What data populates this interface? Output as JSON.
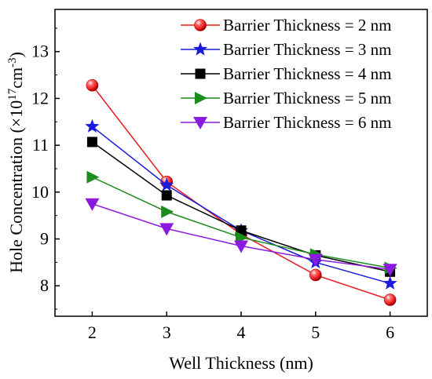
{
  "chart_data": {
    "type": "line",
    "title": "",
    "xlabel": "Well Thickness (nm)",
    "ylabel": {
      "prefix": "Hole Concentration (×10",
      "sup1": "17",
      "mid": "cm",
      "sup2": "-3",
      "suffix": ")"
    },
    "x": [
      2,
      3,
      4,
      5,
      6
    ],
    "xlim": [
      1.5,
      6.5
    ],
    "ylim": [
      7.35,
      13.9
    ],
    "xticks": [
      "2",
      "3",
      "4",
      "5",
      "6"
    ],
    "yticks": [
      "8",
      "9",
      "10",
      "11",
      "12",
      "13"
    ],
    "legend_position": "top-right",
    "grid": false,
    "series": [
      {
        "name": "Barrier Thickness = 2 nm",
        "marker": "sphere",
        "color": "#e8191c",
        "values": [
          12.28,
          10.22,
          9.1,
          8.23,
          7.7
        ]
      },
      {
        "name": "Barrier Thickness = 3 nm",
        "marker": "star",
        "color": "#1a1adb",
        "values": [
          11.4,
          10.15,
          9.18,
          8.5,
          8.05
        ]
      },
      {
        "name": "Barrier Thickness = 4 nm",
        "marker": "square",
        "color": "#000000",
        "values": [
          11.07,
          9.93,
          9.18,
          8.65,
          8.3
        ]
      },
      {
        "name": "Barrier Thickness = 5 nm",
        "marker": "triangle-right",
        "color": "#1c8c1c",
        "values": [
          10.32,
          9.58,
          9.03,
          8.67,
          8.38
        ]
      },
      {
        "name": "Barrier Thickness = 6 nm",
        "marker": "triangle-down",
        "color": "#8a1ae0",
        "values": [
          9.75,
          9.22,
          8.85,
          8.56,
          8.35
        ]
      }
    ]
  }
}
